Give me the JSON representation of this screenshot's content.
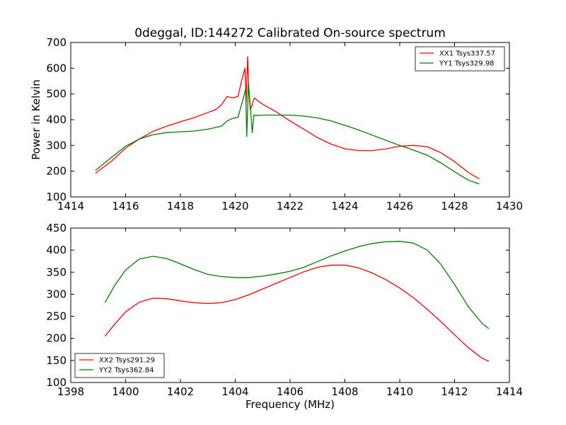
{
  "title": "0deggal, ID:144272 Calibrated On-source spectrum",
  "chart_data": [
    {
      "type": "line",
      "ylabel": "Power in Kelvin",
      "xlabel": "",
      "xlim": [
        1414,
        1430
      ],
      "ylim": [
        100,
        700
      ],
      "xticks": [
        "1414",
        "1416",
        "1418",
        "1420",
        "1422",
        "1424",
        "1426",
        "1428",
        "1430"
      ],
      "yticks": [
        "100",
        "200",
        "300",
        "400",
        "500",
        "600",
        "700"
      ],
      "legend_position": "top-right",
      "series": [
        {
          "name": "XX1 Tsys337.57",
          "color": "#ff0000",
          "x": [
            1414.9,
            1415.5,
            1416.0,
            1416.5,
            1417.0,
            1417.5,
            1418.0,
            1418.5,
            1419.0,
            1419.3,
            1419.5,
            1419.7,
            1419.9,
            1420.1,
            1420.25,
            1420.35,
            1420.4,
            1420.45,
            1420.5,
            1420.55,
            1420.6,
            1420.65,
            1420.7,
            1420.8,
            1421.0,
            1421.5,
            1422.0,
            1422.5,
            1423.0,
            1423.5,
            1424.0,
            1424.5,
            1425.0,
            1425.5,
            1426.0,
            1426.5,
            1427.0,
            1427.5,
            1428.0,
            1428.5,
            1428.9
          ],
          "y": [
            192,
            240,
            290,
            325,
            355,
            375,
            392,
            408,
            428,
            440,
            458,
            490,
            485,
            490,
            560,
            600,
            470,
            645,
            510,
            440,
            450,
            470,
            485,
            475,
            460,
            430,
            395,
            363,
            330,
            305,
            287,
            280,
            280,
            287,
            297,
            300,
            295,
            272,
            237,
            195,
            170
          ]
        },
        {
          "name": "YY1 Tsys329.98",
          "color": "#008000",
          "x": [
            1414.9,
            1415.5,
            1416.0,
            1416.5,
            1417.0,
            1417.5,
            1418.0,
            1418.5,
            1419.0,
            1419.5,
            1419.7,
            1419.9,
            1420.1,
            1420.3,
            1420.38,
            1420.42,
            1420.48,
            1420.55,
            1420.62,
            1420.68,
            1420.75,
            1421.0,
            1421.5,
            1422.0,
            1422.5,
            1423.0,
            1423.5,
            1424.0,
            1424.5,
            1425.0,
            1425.5,
            1426.0,
            1426.5,
            1427.0,
            1427.5,
            1428.0,
            1428.5,
            1428.9
          ],
          "y": [
            203,
            255,
            297,
            325,
            342,
            350,
            353,
            356,
            363,
            375,
            395,
            405,
            410,
            485,
            520,
            335,
            540,
            455,
            350,
            418,
            416,
            418,
            418,
            418,
            414,
            407,
            395,
            378,
            360,
            340,
            320,
            300,
            282,
            262,
            232,
            198,
            165,
            150
          ]
        }
      ]
    },
    {
      "type": "line",
      "xlabel": "Frequency (MHz)",
      "ylabel": "",
      "xlim": [
        1398,
        1414
      ],
      "ylim": [
        100,
        450
      ],
      "xticks": [
        "1398",
        "1400",
        "1402",
        "1404",
        "1406",
        "1408",
        "1410",
        "1412",
        "1414"
      ],
      "yticks": [
        "100",
        "150",
        "200",
        "250",
        "300",
        "350",
        "400",
        "450"
      ],
      "legend_position": "bottom-left",
      "series": [
        {
          "name": "XX2 Tsys291.29",
          "color": "#ff0000",
          "x": [
            1399.25,
            1399.6,
            1400.0,
            1400.5,
            1401.0,
            1401.5,
            1402.0,
            1402.5,
            1403.0,
            1403.5,
            1404.0,
            1404.5,
            1405.0,
            1405.5,
            1406.0,
            1406.5,
            1407.0,
            1407.5,
            1408.0,
            1408.5,
            1409.0,
            1409.5,
            1410.0,
            1410.5,
            1411.0,
            1411.5,
            1412.0,
            1412.5,
            1413.0,
            1413.25
          ],
          "y": [
            205,
            232,
            260,
            282,
            291,
            290,
            285,
            281,
            279,
            281,
            288,
            299,
            312,
            325,
            338,
            351,
            361,
            366,
            366,
            360,
            348,
            333,
            314,
            292,
            266,
            238,
            208,
            179,
            155,
            148
          ]
        },
        {
          "name": "YY2 Tsys362.84",
          "color": "#008000",
          "x": [
            1399.25,
            1399.6,
            1400.0,
            1400.5,
            1401.0,
            1401.5,
            1402.0,
            1402.5,
            1403.0,
            1403.5,
            1404.0,
            1404.5,
            1405.0,
            1405.5,
            1406.0,
            1406.5,
            1407.0,
            1407.5,
            1408.0,
            1408.5,
            1409.0,
            1409.5,
            1410.0,
            1410.5,
            1411.0,
            1411.5,
            1412.0,
            1412.5,
            1413.0,
            1413.25
          ],
          "y": [
            281,
            320,
            355,
            380,
            386,
            381,
            369,
            356,
            345,
            340,
            338,
            338,
            341,
            346,
            352,
            361,
            374,
            387,
            398,
            408,
            415,
            419,
            420,
            416,
            400,
            368,
            322,
            272,
            234,
            222
          ]
        }
      ]
    }
  ]
}
